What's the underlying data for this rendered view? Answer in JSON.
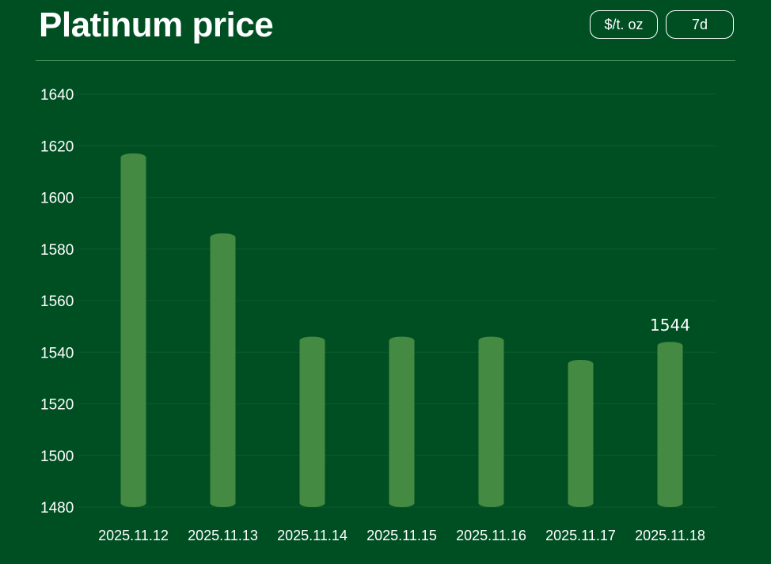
{
  "header": {
    "title": "Platinum price",
    "unit_label": "$/t. oz",
    "range_label": "7d"
  },
  "colors": {
    "background": "#004f23",
    "bar": "#448a42",
    "grid": "#0c5a2c",
    "text": "#ffffff"
  },
  "chart_data": {
    "type": "bar",
    "title": "Platinum price",
    "categories": [
      "2025.11.12",
      "2025.11.13",
      "2025.11.14",
      "2025.11.15",
      "2025.11.16",
      "2025.11.17",
      "2025.11.18"
    ],
    "values": [
      1617,
      1586,
      1546,
      1546,
      1546,
      1537,
      1544
    ],
    "ylim": [
      1480,
      1640
    ],
    "yticks": [
      1480,
      1500,
      1520,
      1540,
      1560,
      1580,
      1600,
      1620,
      1640
    ],
    "grid": true,
    "data_labels": [
      {
        "category": "2025.11.18",
        "text": "1544"
      }
    ]
  }
}
